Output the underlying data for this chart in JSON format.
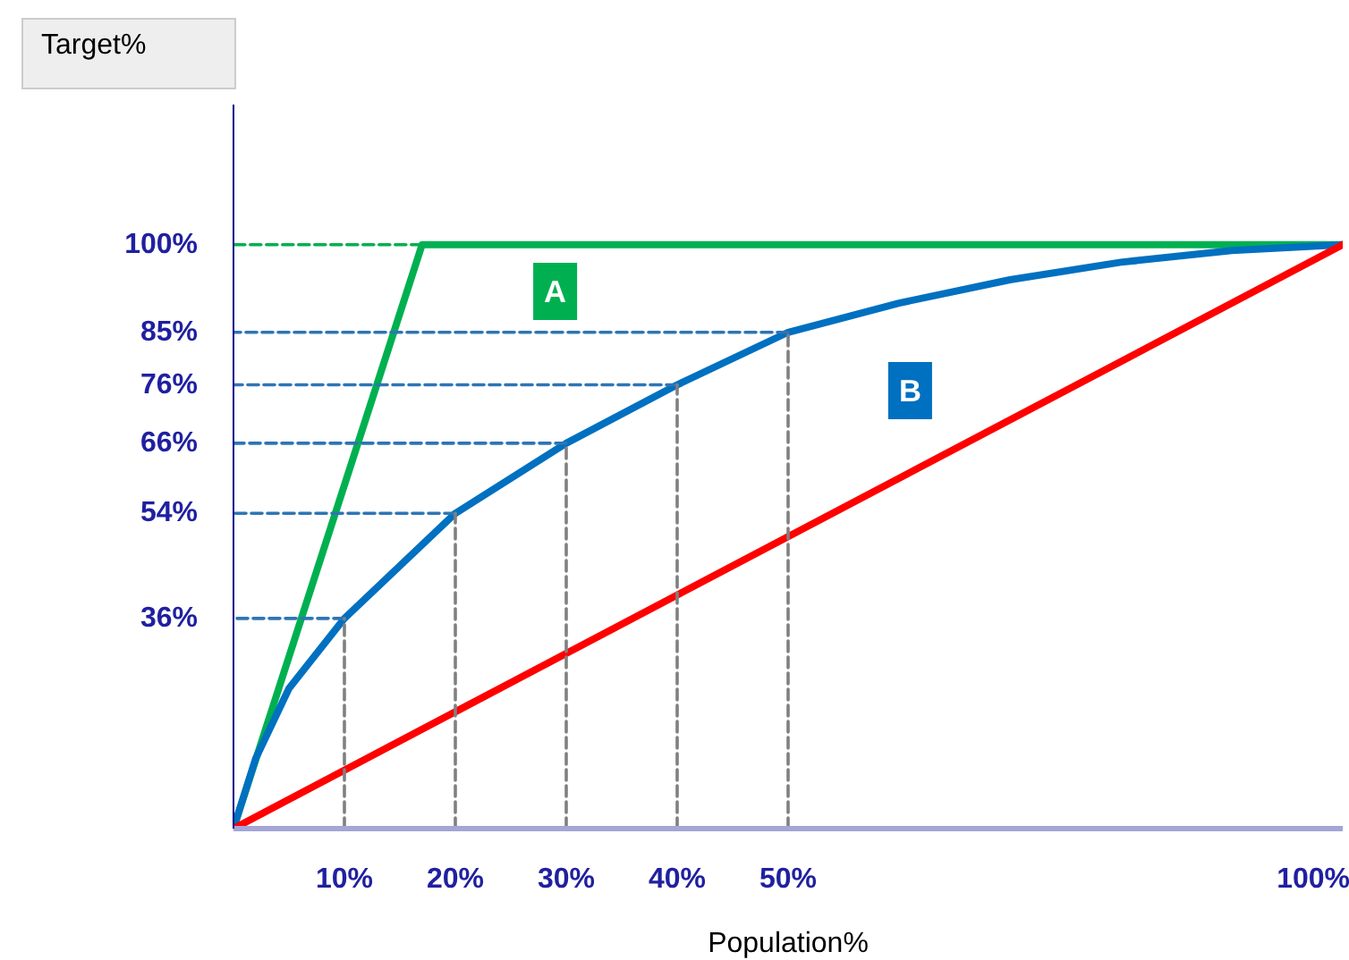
{
  "chart_data": {
    "type": "line",
    "xlabel": "Population%",
    "ylabel": "Target%",
    "x": [
      0,
      2,
      5,
      10,
      20,
      30,
      40,
      50,
      60,
      70,
      80,
      90,
      100
    ],
    "xlim": [
      0,
      100
    ],
    "ylim": [
      0,
      124
    ],
    "xticks": [
      {
        "value": 10,
        "label": "10%"
      },
      {
        "value": 20,
        "label": "20%"
      },
      {
        "value": 30,
        "label": "30%"
      },
      {
        "value": 40,
        "label": "40%"
      },
      {
        "value": 50,
        "label": "50%"
      },
      {
        "value": 100,
        "label": "100%"
      }
    ],
    "yticks": [
      {
        "value": 36,
        "label": "36%"
      },
      {
        "value": 54,
        "label": "54%"
      },
      {
        "value": 66,
        "label": "66%"
      },
      {
        "value": 76,
        "label": "76%"
      },
      {
        "value": 85,
        "label": "85%"
      },
      {
        "value": 100,
        "label": "100%"
      }
    ],
    "grid": false,
    "marker": "none",
    "series": [
      {
        "color": "#00b050",
        "x": [
          0,
          17,
          100
        ],
        "values": [
          0,
          100,
          100
        ]
      },
      {
        "color": "#0070c0",
        "values": [
          0,
          12,
          24,
          36,
          54,
          66,
          76,
          85,
          90,
          94,
          97,
          99,
          100
        ]
      },
      {
        "color": "#ff0000",
        "x": [
          0,
          100
        ],
        "values": [
          0,
          100
        ]
      },
      {
        "color": "#00b050",
        "line_style": "dashed",
        "x": [
          17,
          0
        ],
        "values": [
          100,
          100
        ]
      },
      {
        "color": "#2e75b6",
        "line_style": "dashed",
        "x": [
          50,
          0
        ],
        "values": [
          85,
          85
        ]
      },
      {
        "color": "#2e75b6",
        "line_style": "dashed",
        "x": [
          40,
          0
        ],
        "values": [
          76,
          76
        ]
      },
      {
        "color": "#2e75b6",
        "line_style": "dashed",
        "x": [
          30,
          0
        ],
        "values": [
          66,
          66
        ]
      },
      {
        "color": "#2e75b6",
        "line_style": "dashed",
        "x": [
          20,
          0
        ],
        "values": [
          54,
          54
        ]
      },
      {
        "color": "#2e75b6",
        "line_style": "dashed",
        "x": [
          10,
          0
        ],
        "values": [
          36,
          36
        ]
      },
      {
        "color": "#808080",
        "line_style": "dashed",
        "x": [
          10,
          10
        ],
        "values": [
          0,
          36
        ]
      },
      {
        "color": "#808080",
        "line_style": "dashed",
        "x": [
          20,
          20
        ],
        "values": [
          0,
          54
        ]
      },
      {
        "color": "#808080",
        "line_style": "dashed",
        "x": [
          30,
          30
        ],
        "values": [
          0,
          66
        ]
      },
      {
        "color": "#808080",
        "line_style": "dashed",
        "x": [
          40,
          40
        ],
        "values": [
          0,
          76
        ]
      },
      {
        "color": "#808080",
        "line_style": "dashed",
        "x": [
          50,
          50
        ],
        "values": [
          0,
          85
        ]
      }
    ],
    "annotations": [
      {
        "text": "A",
        "x": 29,
        "y": 92
      },
      {
        "text": "B",
        "x": 61,
        "y": 75
      }
    ]
  }
}
